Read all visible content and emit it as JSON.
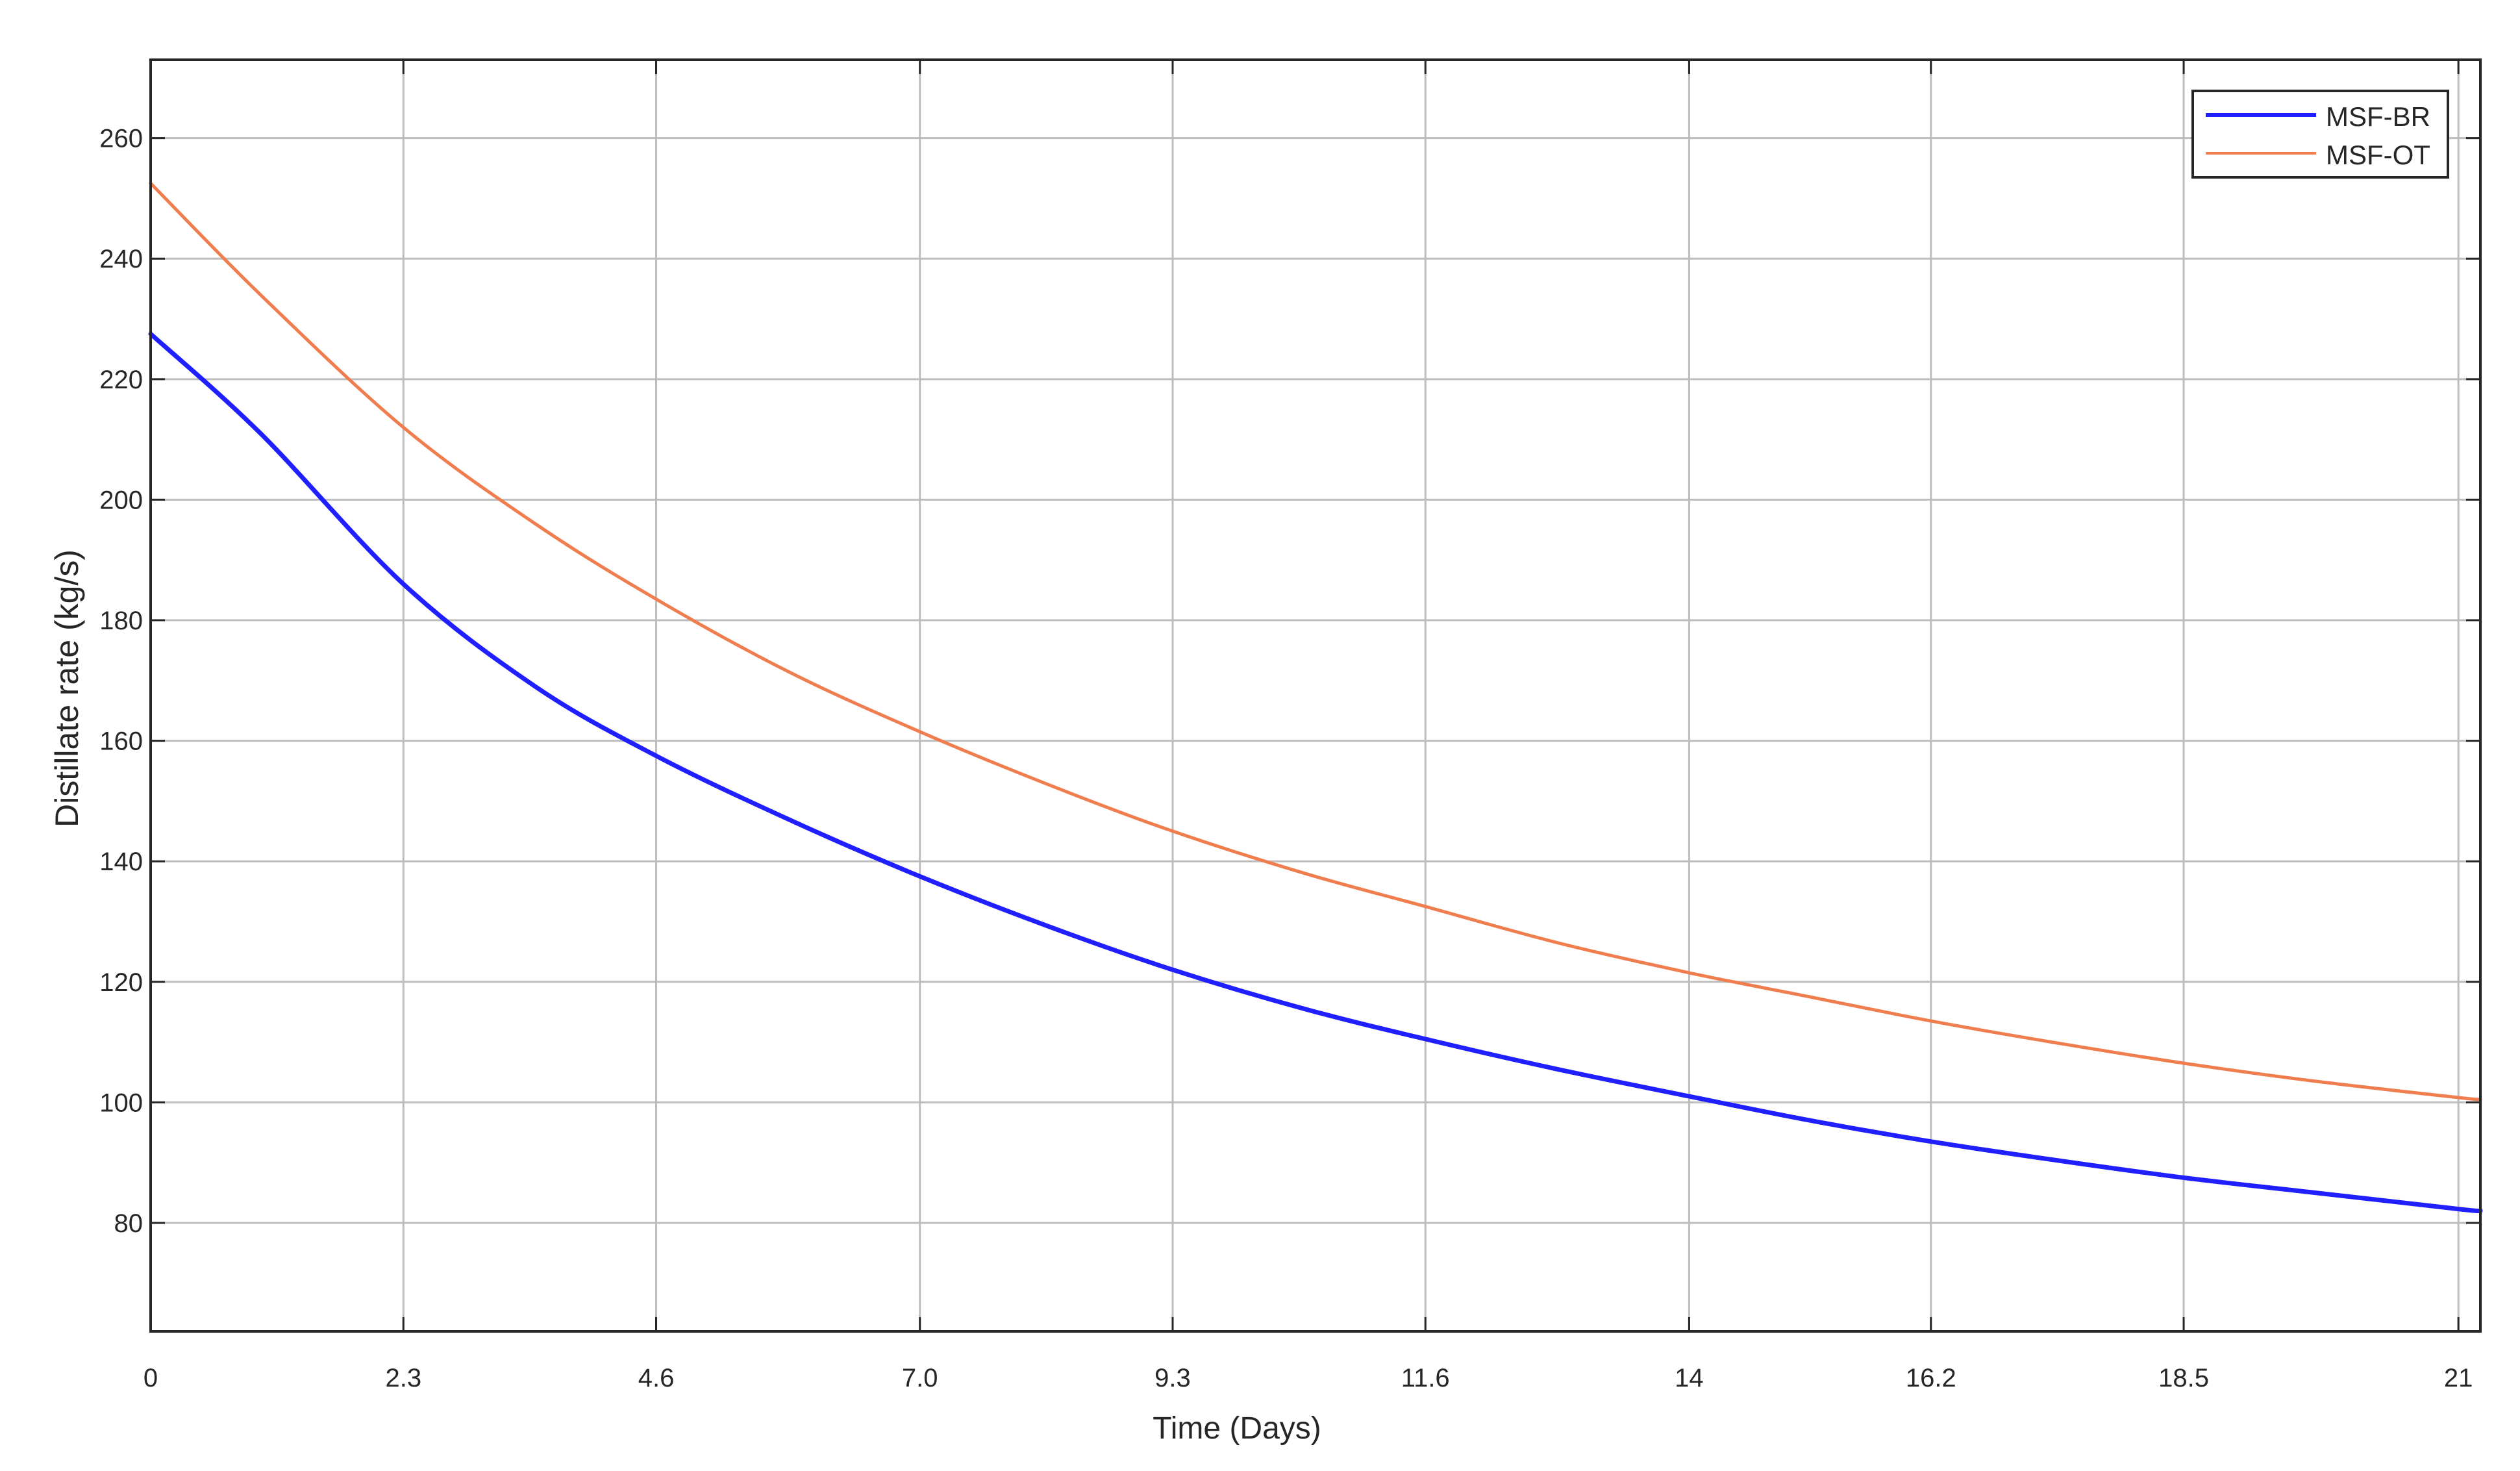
{
  "chart_data": {
    "type": "line",
    "title": "",
    "xlabel": "Time (Days)",
    "ylabel": "Distillate rate (kg/s)",
    "xlim": [
      0,
      21.2
    ],
    "ylim": [
      62,
      273
    ],
    "x_ticks": [
      0,
      2.3,
      4.6,
      7.0,
      9.3,
      11.6,
      14,
      16.2,
      18.5,
      21
    ],
    "x_tick_labels": [
      "0",
      "2.3",
      "4.6",
      "7.0",
      "9.3",
      "11.6",
      "14",
      "16.2",
      "18.5",
      "21"
    ],
    "y_ticks": [
      80,
      100,
      120,
      140,
      160,
      180,
      200,
      220,
      240,
      260
    ],
    "y_tick_labels": [
      "80",
      "100",
      "120",
      "140",
      "160",
      "180",
      "200",
      "220",
      "240",
      "260"
    ],
    "grid": true,
    "legend_position": "top-right",
    "x": [
      0,
      1,
      2.3,
      3.5,
      4.6,
      5.8,
      7.0,
      8.2,
      9.3,
      10.5,
      11.6,
      12.8,
      14,
      15.1,
      16.2,
      17.3,
      18.5,
      19.7,
      21,
      21.2
    ],
    "series": [
      {
        "name": "MSF-BR",
        "color": "#1f1fff",
        "values": [
          227.5,
          211,
          186,
          169,
          157.5,
          147,
          137.5,
          129,
          122,
          115.5,
          110.5,
          105.5,
          101,
          97,
          93.5,
          90.5,
          87.5,
          85,
          82.3,
          82
        ]
      },
      {
        "name": "MSF-OT",
        "color": "#ef7d4e",
        "values": [
          252.5,
          234,
          212,
          196,
          183.5,
          171.5,
          161.5,
          152.5,
          145,
          138,
          132.5,
          126.5,
          121.5,
          117.5,
          113.5,
          110,
          106.5,
          103.5,
          100.8,
          100.5
        ]
      }
    ]
  }
}
